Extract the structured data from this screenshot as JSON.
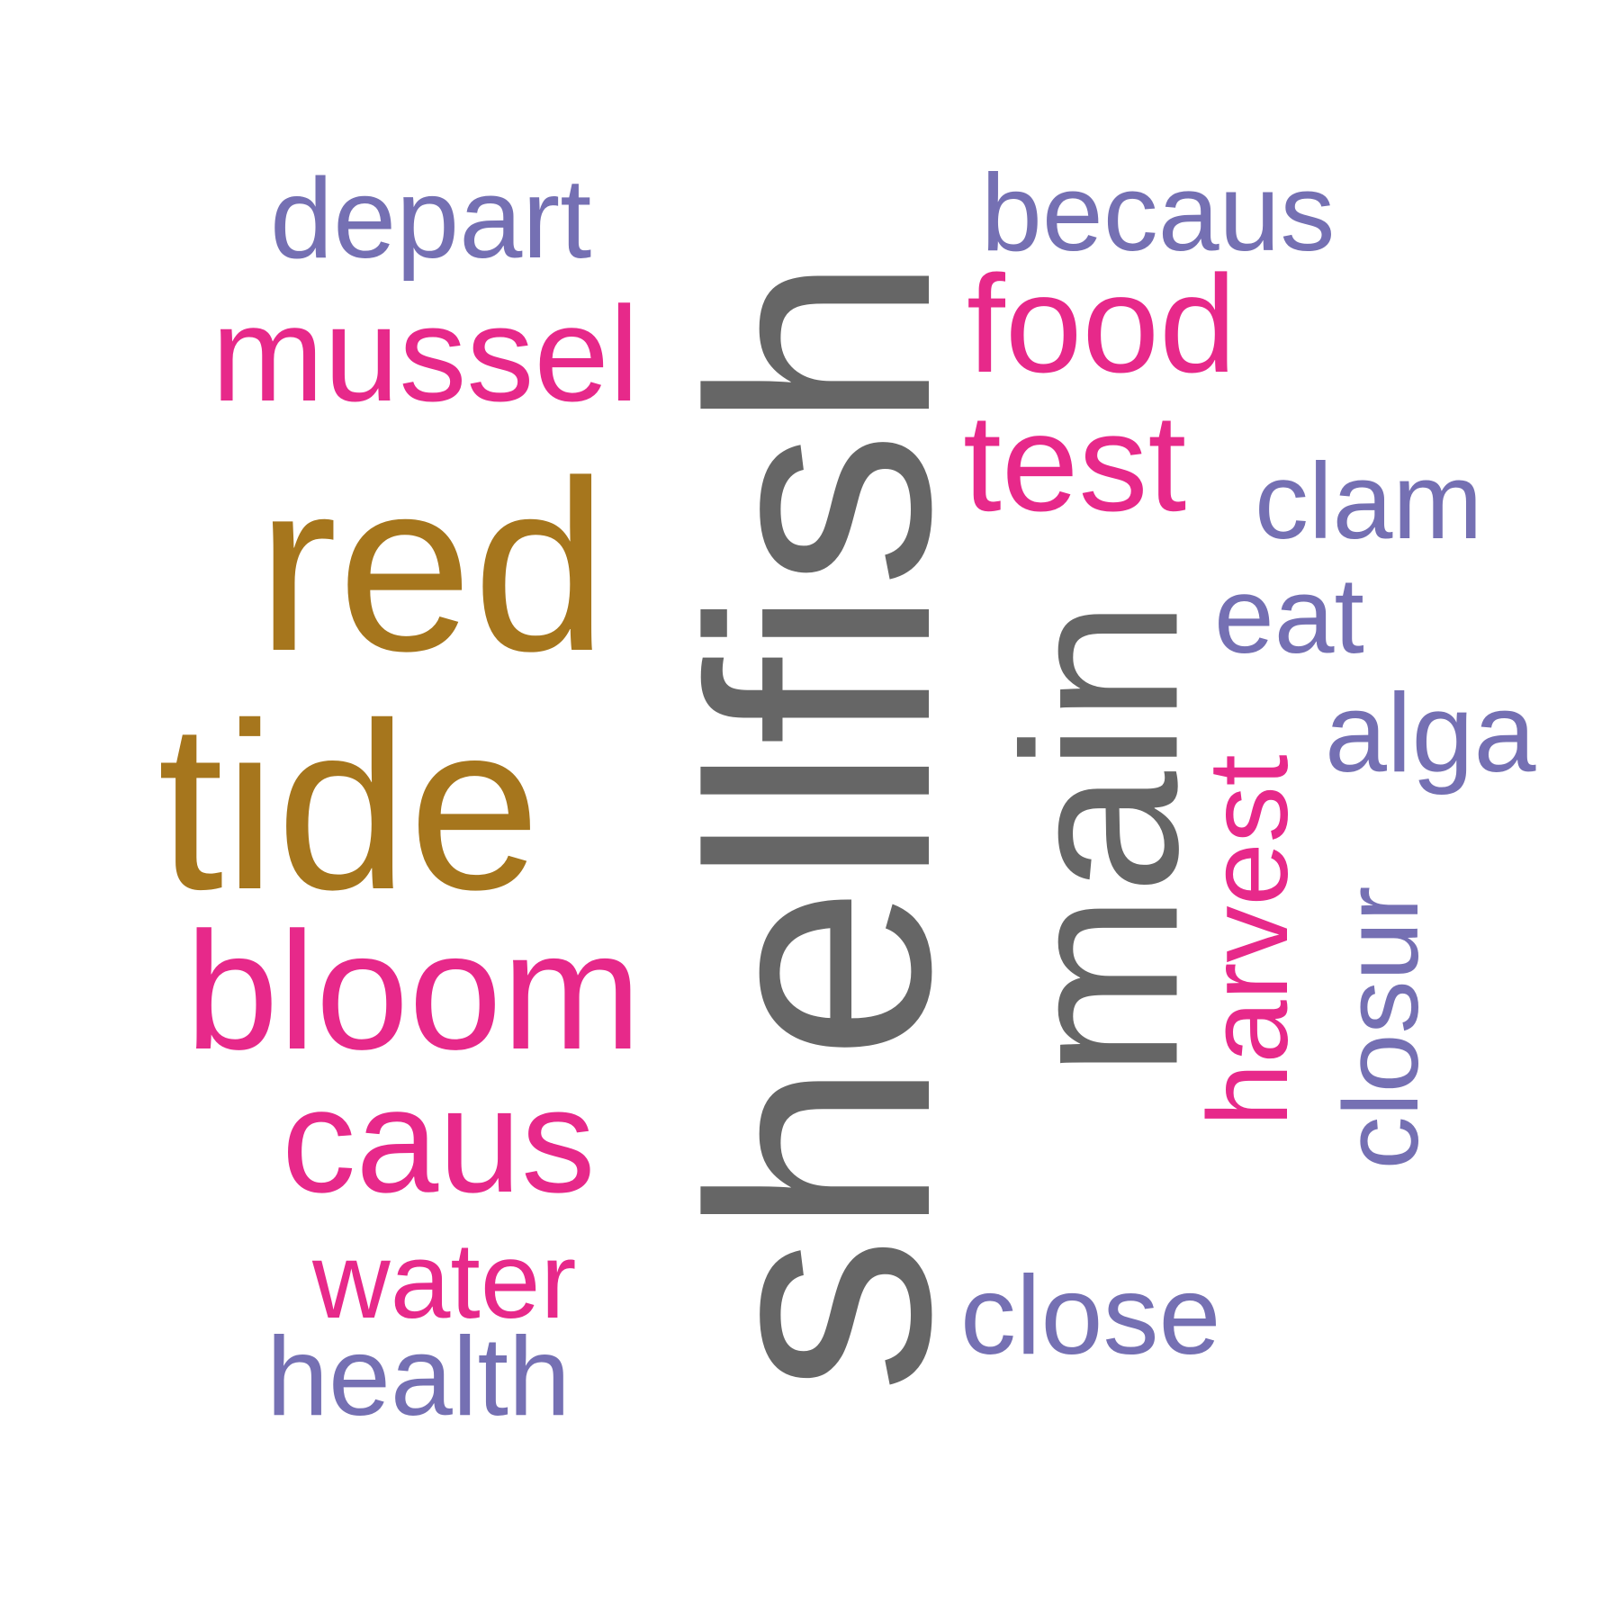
{
  "colors": {
    "grey": "#666666",
    "gold": "#a6761d",
    "pink": "#e7298a",
    "purple": "#7570b3"
  },
  "words": {
    "shellfish": "shellfish",
    "main": "main",
    "red": "red",
    "tide": "tide",
    "bloom": "bloom",
    "caus": "caus",
    "mussel": "mussel",
    "depart": "depart",
    "water": "water",
    "health": "health",
    "becaus": "becaus",
    "food": "food",
    "test": "test",
    "clam": "clam",
    "eat": "eat",
    "alga": "alga",
    "harvest": "harvest",
    "closur": "closur",
    "close": "close"
  }
}
